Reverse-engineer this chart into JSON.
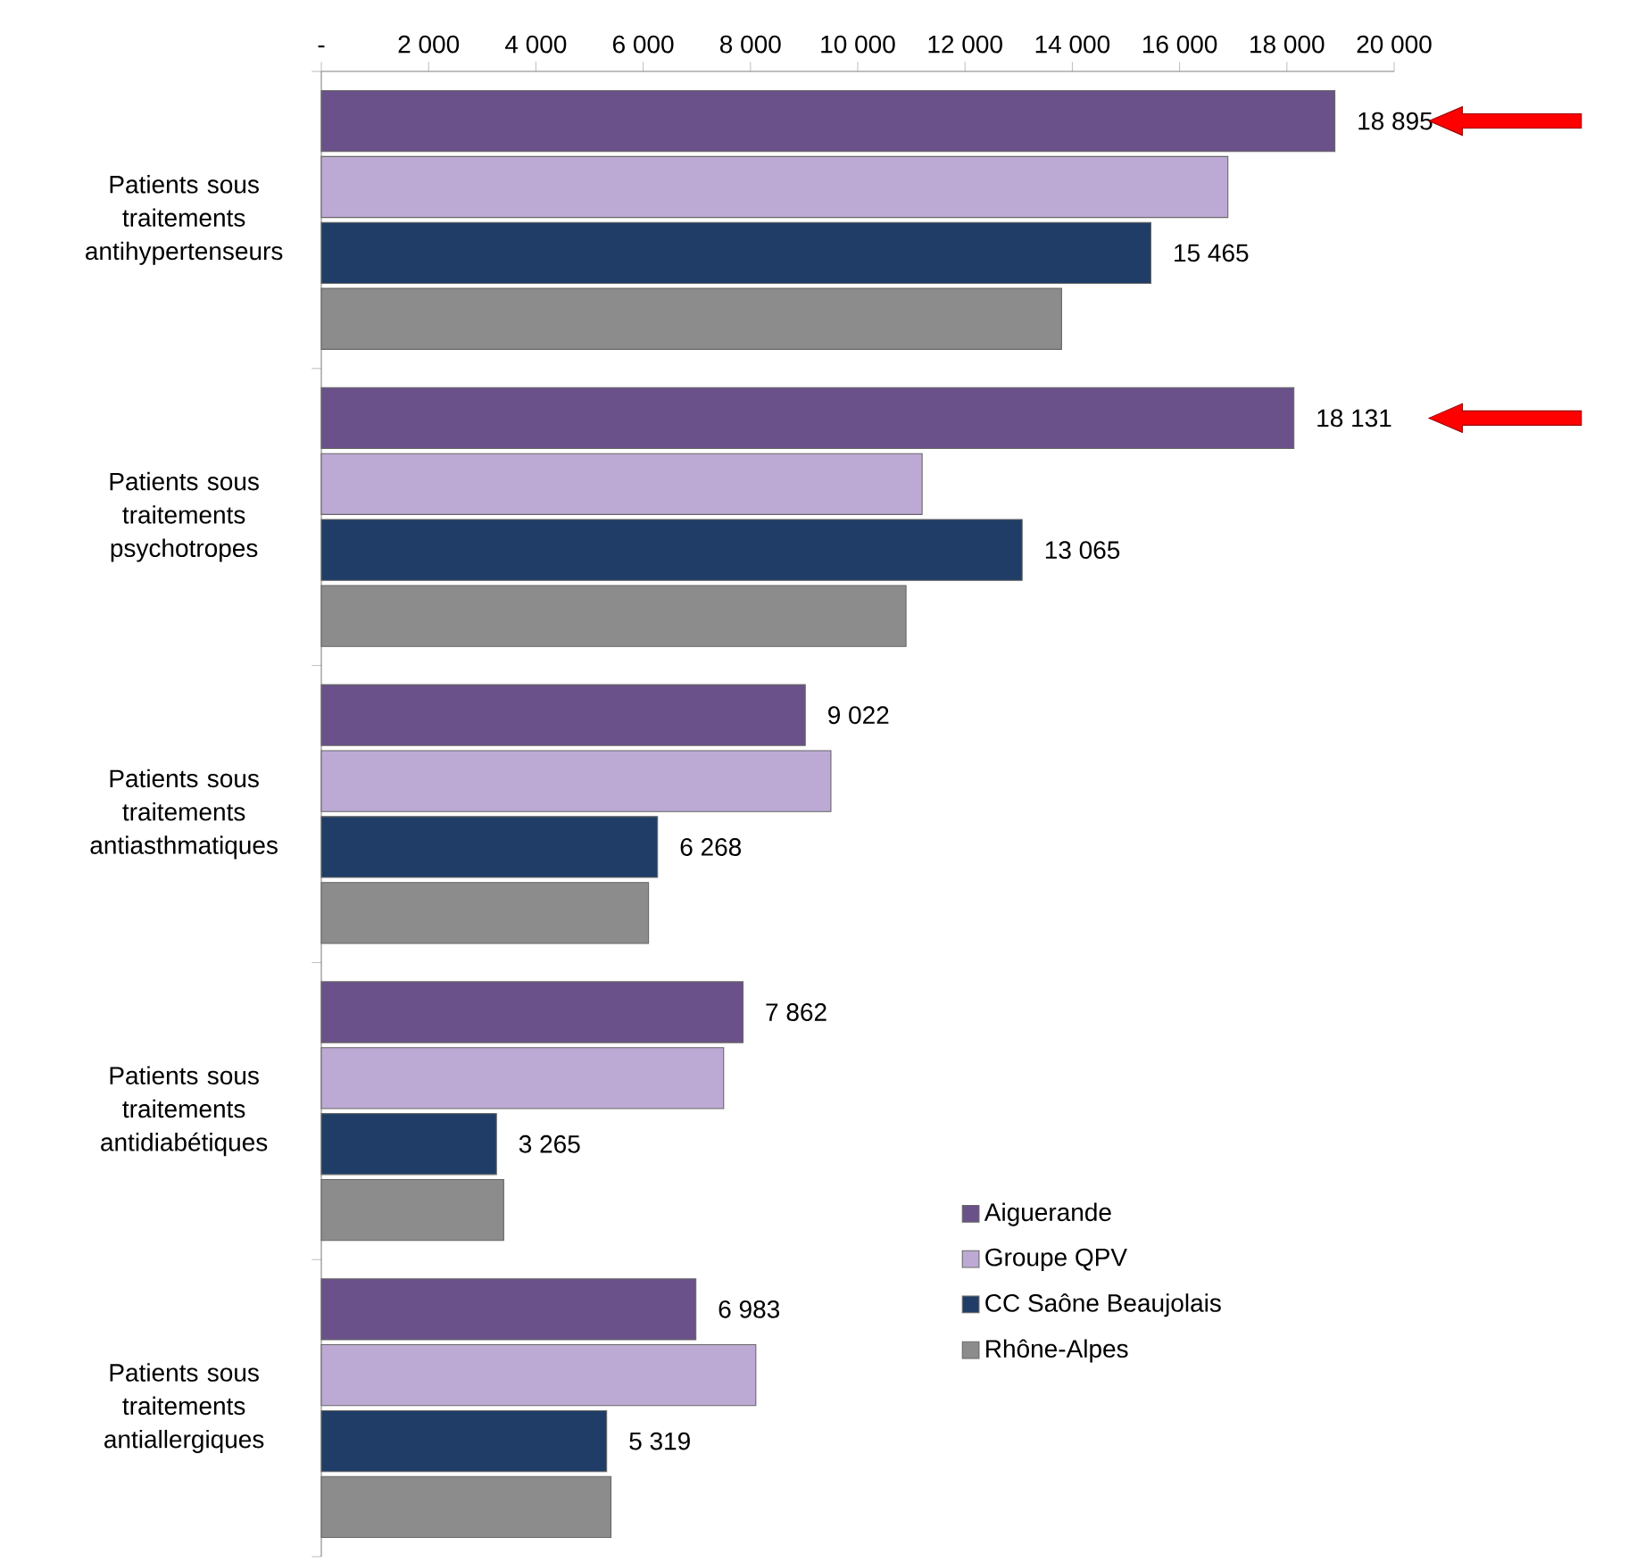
{
  "chart_data": {
    "type": "bar",
    "orientation": "horizontal",
    "categories": [
      "Patients sous traitements antihypertenseurs",
      "Patients sous traitements psychotropes",
      "Patients sous traitements antiasthmatiques",
      "Patients sous traitements antidiabétiques",
      "Patients sous traitements antiallergiques"
    ],
    "series": [
      {
        "name": "Aiguerande",
        "color": "#6a5189",
        "values": [
          18895,
          18131,
          9022,
          7862,
          6983
        ],
        "value_labels": [
          "18 895",
          "18 131",
          "9 022",
          "7 862",
          "6 983"
        ]
      },
      {
        "name": "Groupe QPV",
        "color": "#bdaad4",
        "values": [
          16900,
          11200,
          9500,
          7500,
          8100
        ]
      },
      {
        "name": "CC Saône Beaujolais",
        "color": "#1f3d66",
        "values": [
          15465,
          13065,
          6268,
          3265,
          5319
        ],
        "value_labels": [
          "15 465",
          "13 065",
          "6 268",
          "3 265",
          "5 319"
        ]
      },
      {
        "name": "Rhône-Alpes",
        "color": "#8c8c8c",
        "values": [
          13800,
          10900,
          6100,
          3400,
          5400
        ]
      }
    ],
    "xlim": [
      0,
      20000
    ],
    "xticks": [
      {
        "value": 0,
        "label": "-"
      },
      {
        "value": 2000,
        "label": "2 000"
      },
      {
        "value": 4000,
        "label": "4 000"
      },
      {
        "value": 6000,
        "label": "6 000"
      },
      {
        "value": 8000,
        "label": "8 000"
      },
      {
        "value": 10000,
        "label": "10 000"
      },
      {
        "value": 12000,
        "label": "12 000"
      },
      {
        "value": 14000,
        "label": "14 000"
      },
      {
        "value": 16000,
        "label": "16 000"
      },
      {
        "value": 18000,
        "label": "18 000"
      },
      {
        "value": 20000,
        "label": "20 000"
      }
    ],
    "legend": "bottom right"
  }
}
